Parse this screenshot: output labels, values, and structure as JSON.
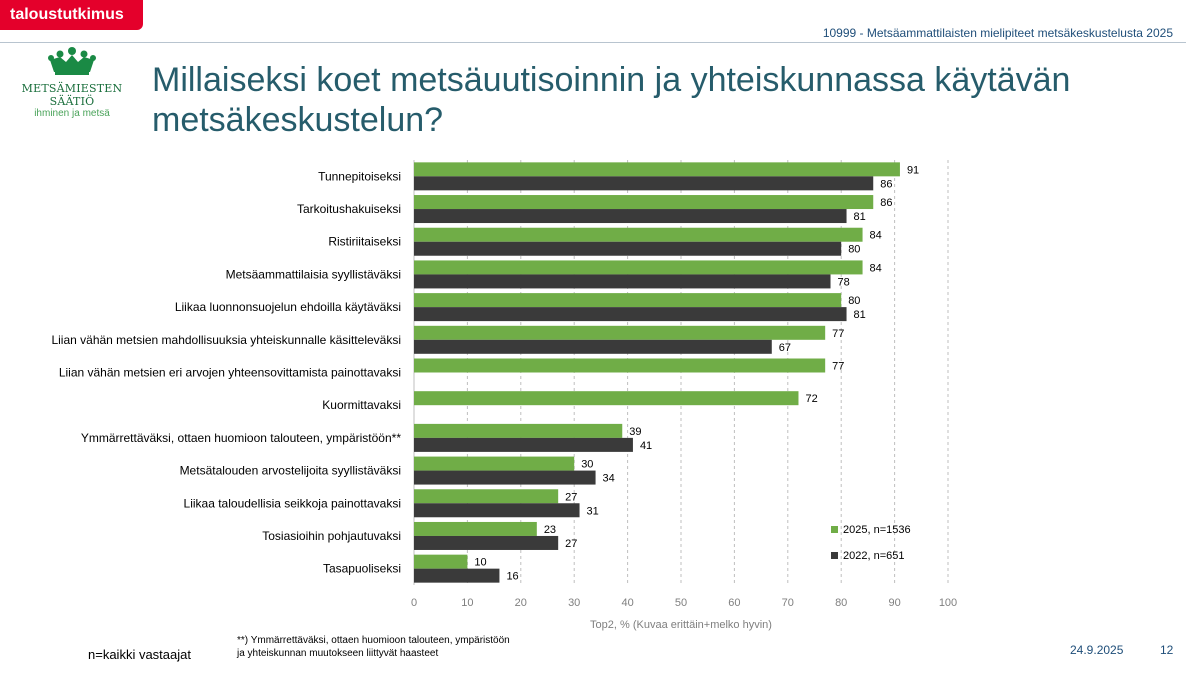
{
  "brand": "taloustutkimus",
  "header": {
    "study": "10999 - Metsäammattilaisten mielipiteet metsäkeskustelusta 2025"
  },
  "logo": {
    "name": "METSÄMIESTEN SÄÄTIÖ",
    "tagline": "ihminen ja metsä"
  },
  "title": "Millaiseksi koet metsäuutisoinnin ja yhteiskunnassa käytävän metsäkeskustelun?",
  "footer": {
    "base": "n=kaikki vastaajat",
    "note_line1": "**) Ymmärrettäväksi, ottaen huomioon talouteen, ympäristöön",
    "note_line2": "ja yhteiskunnan muutokseen liittyvät haasteet",
    "date": "24.9.2025",
    "page": "12"
  },
  "colors": {
    "series_2025": "#70ad47",
    "series_2022": "#3a3a3a",
    "title": "#265c6b",
    "brand": "#e4002b"
  },
  "chart_data": {
    "type": "bar",
    "orientation": "horizontal",
    "categories": [
      "Tunnepitoiseksi",
      "Tarkoitushakuiseksi",
      "Ristiriitaiseksi",
      "Metsäammattilaisia syyllistäväksi",
      "Liikaa luonnonsuojelun ehdoilla käytäväksi",
      "Liian vähän metsien mahdollisuuksia yhteiskunnalle käsitteleväksi",
      "Liian vähän metsien eri arvojen yhteensovittamista painottavaksi",
      "Kuormittavaksi",
      "Ymmärrettäväksi, ottaen huomioon talouteen, ympäristöön**",
      "Metsätalouden arvostelijoita syyllistäväksi",
      "Liikaa taloudellisia seikkoja painottavaksi",
      "Tosiasioihin pohjautuvaksi",
      "Tasapuoliseksi"
    ],
    "series": [
      {
        "name": "2025, n=1536",
        "color": "#70ad47",
        "values": [
          91,
          86,
          84,
          84,
          80,
          77,
          77,
          72,
          39,
          30,
          27,
          23,
          10
        ]
      },
      {
        "name": "2022, n=651",
        "color": "#3a3a3a",
        "values": [
          86,
          81,
          80,
          78,
          81,
          67,
          null,
          null,
          41,
          34,
          31,
          27,
          16
        ]
      }
    ],
    "xlabel": "Top2, % (Kuvaa erittäin+melko hyvin)",
    "xlim": [
      0,
      100
    ],
    "xticks": [
      0,
      10,
      20,
      30,
      40,
      50,
      60,
      70,
      80,
      90,
      100
    ],
    "grid": "vertical-dashed",
    "legend": "bottom-right"
  }
}
